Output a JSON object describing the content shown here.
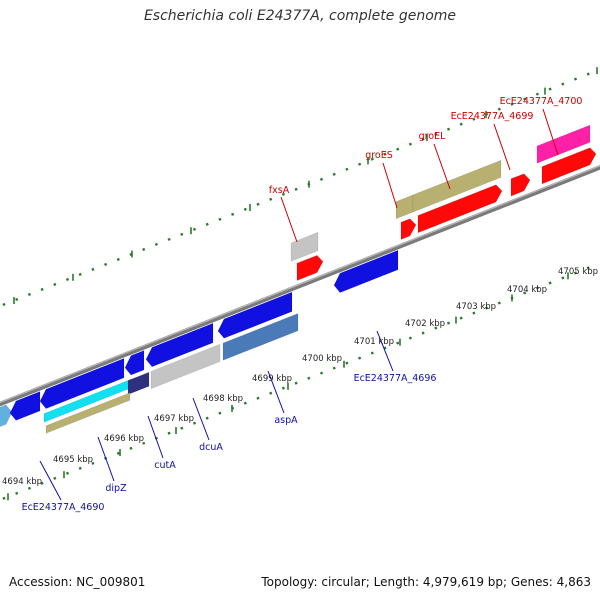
{
  "title": "Escherichia coli E24377A, complete genome",
  "footer": {
    "accession": "Accession: NC_009801",
    "summary": "Topology: circular; Length: 4,979,619 bp; Genes: 4,863"
  },
  "colors": {
    "background": "#ffffff",
    "forward_label": "#cc0000",
    "reverse_label": "#1010a0",
    "tick": "#2a7a2a",
    "backbone": "#7a7a7a",
    "blue": "#1010e0",
    "red": "#ff0808",
    "khaki": "#b8b070",
    "gray": "#c4c4c4",
    "pink": "#ff20a8",
    "steel": "#4a7ab8",
    "cyan": "#10e0f0",
    "navy": "#303080",
    "light_blue": "#60b0e0"
  },
  "scale_labels": [
    "4694 kbp",
    "4695 kbp",
    "4696 kbp",
    "4697 kbp",
    "4698 kbp",
    "4699 kbp",
    "4700 kbp",
    "4701 kbp",
    "4702 kbp",
    "4703 kbp",
    "4704 kbp",
    "4705 kbp"
  ],
  "gene_labels": {
    "forward": [
      "fxsA",
      "groES",
      "groEL",
      "EcE24377A_4699",
      "EcE24377A_4700"
    ],
    "reverse": [
      "EcE24377A_4690",
      "dipZ",
      "cutA",
      "dcuA",
      "aspA",
      "EcE24377A_4696"
    ]
  }
}
